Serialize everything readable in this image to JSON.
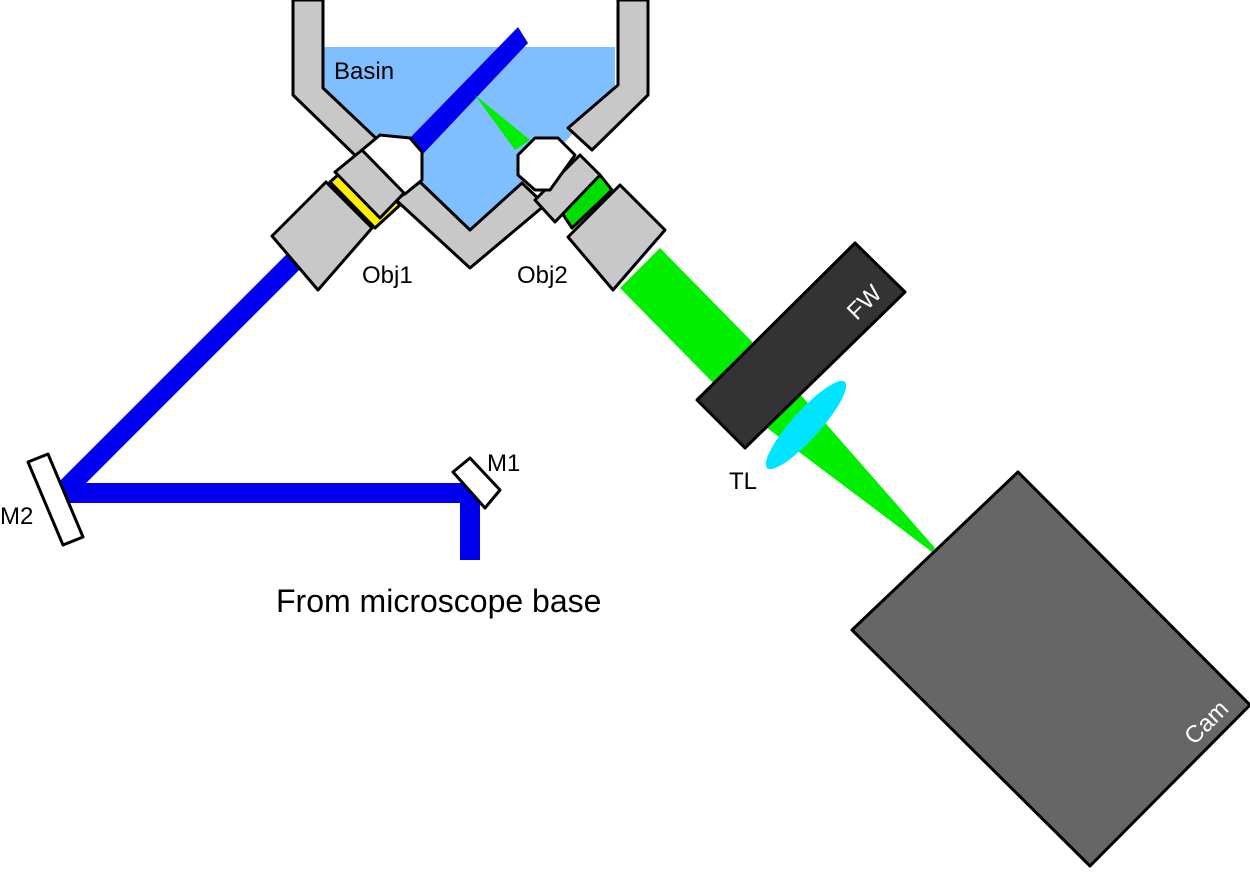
{
  "labels": {
    "basin": "Basin",
    "obj1": "Obj1",
    "obj2": "Obj2",
    "fw": "FW",
    "tl": "TL",
    "m1": "M1",
    "m2": "M2",
    "cam": "Cam",
    "source": "From microscope base"
  },
  "colors": {
    "excitation": "#0000ee",
    "emission": "#00ee00",
    "water": "#80bfff",
    "metal": "#c8c8c8",
    "filter_wheel": "#333333",
    "camera": "#666666",
    "tube_lens": "#00e5ff",
    "obj1_filter": "#ffee00",
    "obj2_filter": "#00dd00"
  }
}
